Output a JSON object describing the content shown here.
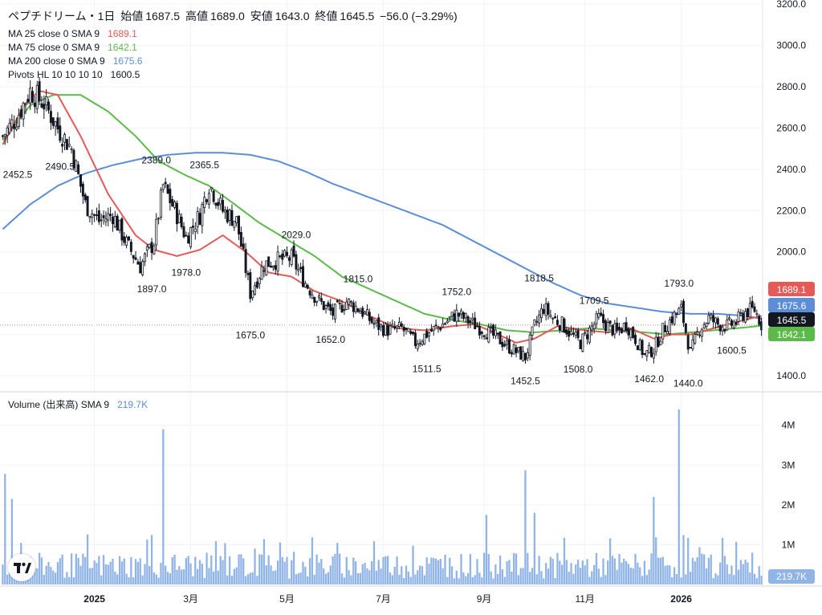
{
  "header": {
    "symbol": "ペプチドリーム・1日",
    "open_label": "始値",
    "open": "1687.5",
    "high_label": "高値",
    "high": "1689.0",
    "low_label": "安値",
    "low": "1643.0",
    "close_label": "終値",
    "close": "1645.5",
    "change": "−56.0 (−3.29%)"
  },
  "legend": {
    "ma25_label": "MA 25 close 0 SMA 9",
    "ma25_value": "1689.1",
    "ma75_label": "MA 75 close 0 SMA 9",
    "ma75_value": "1642.1",
    "ma200_label": "MA 200 close 0 SMA 9",
    "ma200_value": "1675.6",
    "pivots_label": "Pivots HL 10 10 10 10",
    "pivots_value": "1600.5",
    "volume_label": "Volume (出来高)",
    "volume_sma_label": "SMA 9",
    "volume_sma_value": "219.7K"
  },
  "colors": {
    "up": "#ffffff",
    "up_border": "#131722",
    "down": "#131722",
    "ma25": "#e55a57",
    "ma75": "#5cba4a",
    "ma200": "#5b8ed6",
    "volume": "#90b4e6",
    "grid": "#f0f3fa",
    "axis_text": "#131722"
  },
  "chart_data": [
    {
      "type": "candlestick",
      "title": "ペプチドリーム・1日",
      "y_axis_ticks": [
        1400,
        1600,
        1800,
        2000,
        2200,
        2400,
        2600,
        2800,
        3000,
        3200
      ],
      "ylim": [
        1330,
        3220
      ],
      "x_axis_labels": [
        "2025",
        "3月",
        "5月",
        "7月",
        "9月",
        "11月",
        "2026"
      ],
      "price_tags": [
        {
          "label": "1689.1",
          "value": 1689.1,
          "color": "#e55a57"
        },
        {
          "label": "1675.6",
          "value": 1675.6,
          "color": "#5b8ed6"
        },
        {
          "label": "1645.5",
          "value": 1645.5,
          "color": "#131722"
        },
        {
          "label": "1642.1",
          "value": 1642.1,
          "color": "#5cba4a"
        }
      ],
      "pivots": [
        {
          "label": "2452.5",
          "value": 2452.5,
          "bar": 0
        },
        {
          "label": "2490.5",
          "value": 2490.5,
          "bar": 25
        },
        {
          "label": "2389.0",
          "value": 2389.0,
          "bar": 67
        },
        {
          "label": "2365.5",
          "value": 2365.5,
          "bar": 88
        },
        {
          "label": "1978.0",
          "value": 1978.0,
          "bar": 80
        },
        {
          "label": "1897.0",
          "value": 1897.0,
          "bar": 65
        },
        {
          "label": "2029.0",
          "value": 2029.0,
          "bar": 128
        },
        {
          "label": "1675.0",
          "value": 1675.0,
          "bar": 108
        },
        {
          "label": "1815.0",
          "value": 1815.0,
          "bar": 155
        },
        {
          "label": "1652.0",
          "value": 1652.0,
          "bar": 143
        },
        {
          "label": "1752.0",
          "value": 1752.0,
          "bar": 198
        },
        {
          "label": "1511.5",
          "value": 1511.5,
          "bar": 185
        },
        {
          "label": "1818.5",
          "value": 1818.5,
          "bar": 234
        },
        {
          "label": "1452.5",
          "value": 1452.5,
          "bar": 228
        },
        {
          "label": "1709.5",
          "value": 1709.5,
          "bar": 258
        },
        {
          "label": "1508.0",
          "value": 1508.0,
          "bar": 251
        },
        {
          "label": "1793.0",
          "value": 1793.0,
          "bar": 295
        },
        {
          "label": "1462.0",
          "value": 1462.0,
          "bar": 282
        },
        {
          "label": "1440.0",
          "value": 1440.0,
          "bar": 299
        },
        {
          "label": "1600.5",
          "value": 1600.5,
          "bar": 318
        }
      ],
      "close_anchors": [
        [
          0,
          2560
        ],
        [
          6,
          2650
        ],
        [
          12,
          2780
        ],
        [
          18,
          2720
        ],
        [
          24,
          2600
        ],
        [
          30,
          2500
        ],
        [
          36,
          2230
        ],
        [
          42,
          2150
        ],
        [
          48,
          2180
        ],
        [
          54,
          2040
        ],
        [
          60,
          1930
        ],
        [
          66,
          2050
        ],
        [
          70,
          2320
        ],
        [
          76,
          2180
        ],
        [
          80,
          2070
        ],
        [
          86,
          2180
        ],
        [
          90,
          2330
        ],
        [
          96,
          2200
        ],
        [
          102,
          2150
        ],
        [
          108,
          1800
        ],
        [
          114,
          1940
        ],
        [
          120,
          1960
        ],
        [
          126,
          1970
        ],
        [
          132,
          1850
        ],
        [
          138,
          1760
        ],
        [
          144,
          1700
        ],
        [
          150,
          1760
        ],
        [
          156,
          1720
        ],
        [
          162,
          1650
        ],
        [
          168,
          1620
        ],
        [
          174,
          1630
        ],
        [
          180,
          1560
        ],
        [
          186,
          1610
        ],
        [
          192,
          1650
        ],
        [
          198,
          1700
        ],
        [
          204,
          1660
        ],
        [
          210,
          1620
        ],
        [
          216,
          1580
        ],
        [
          222,
          1530
        ],
        [
          228,
          1490
        ],
        [
          232,
          1640
        ],
        [
          236,
          1730
        ],
        [
          240,
          1680
        ],
        [
          244,
          1650
        ],
        [
          248,
          1600
        ],
        [
          252,
          1560
        ],
        [
          256,
          1620
        ],
        [
          260,
          1680
        ],
        [
          264,
          1640
        ],
        [
          268,
          1610
        ],
        [
          272,
          1650
        ],
        [
          276,
          1580
        ],
        [
          280,
          1500
        ],
        [
          284,
          1530
        ],
        [
          288,
          1620
        ],
        [
          292,
          1680
        ],
        [
          296,
          1720
        ],
        [
          300,
          1510
        ],
        [
          304,
          1630
        ],
        [
          308,
          1680
        ],
        [
          312,
          1650
        ],
        [
          316,
          1640
        ],
        [
          320,
          1660
        ],
        [
          324,
          1710
        ],
        [
          328,
          1720
        ],
        [
          331,
          1650
        ]
      ],
      "ma25_anchors": [
        [
          0,
          2520
        ],
        [
          10,
          2720
        ],
        [
          16,
          2780
        ],
        [
          24,
          2760
        ],
        [
          34,
          2560
        ],
        [
          46,
          2280
        ],
        [
          58,
          2080
        ],
        [
          66,
          2010
        ],
        [
          76,
          1980
        ],
        [
          86,
          2010
        ],
        [
          96,
          2080
        ],
        [
          106,
          2000
        ],
        [
          116,
          1900
        ],
        [
          126,
          1880
        ],
        [
          136,
          1810
        ],
        [
          148,
          1760
        ],
        [
          160,
          1690
        ],
        [
          172,
          1630
        ],
        [
          184,
          1620
        ],
        [
          196,
          1640
        ],
        [
          206,
          1650
        ],
        [
          216,
          1600
        ],
        [
          224,
          1560
        ],
        [
          232,
          1580
        ],
        [
          242,
          1640
        ],
        [
          254,
          1620
        ],
        [
          264,
          1610
        ],
        [
          274,
          1630
        ],
        [
          284,
          1580
        ],
        [
          292,
          1600
        ],
        [
          300,
          1600
        ],
        [
          310,
          1630
        ],
        [
          320,
          1660
        ],
        [
          331,
          1690
        ]
      ],
      "ma75_anchors": [
        [
          0,
          2540
        ],
        [
          12,
          2710
        ],
        [
          22,
          2760
        ],
        [
          34,
          2760
        ],
        [
          46,
          2680
        ],
        [
          58,
          2560
        ],
        [
          68,
          2440
        ],
        [
          80,
          2370
        ],
        [
          90,
          2320
        ],
        [
          100,
          2240
        ],
        [
          112,
          2140
        ],
        [
          124,
          2060
        ],
        [
          136,
          1980
        ],
        [
          148,
          1880
        ],
        [
          160,
          1820
        ],
        [
          172,
          1760
        ],
        [
          184,
          1700
        ],
        [
          196,
          1670
        ],
        [
          208,
          1650
        ],
        [
          220,
          1620
        ],
        [
          232,
          1610
        ],
        [
          244,
          1620
        ],
        [
          256,
          1630
        ],
        [
          268,
          1620
        ],
        [
          280,
          1610
        ],
        [
          290,
          1600
        ],
        [
          300,
          1610
        ],
        [
          310,
          1620
        ],
        [
          320,
          1630
        ],
        [
          331,
          1642
        ]
      ],
      "ma200_anchors": [
        [
          0,
          2110
        ],
        [
          12,
          2230
        ],
        [
          24,
          2320
        ],
        [
          36,
          2380
        ],
        [
          48,
          2420
        ],
        [
          60,
          2450
        ],
        [
          72,
          2470
        ],
        [
          84,
          2480
        ],
        [
          96,
          2480
        ],
        [
          108,
          2470
        ],
        [
          120,
          2440
        ],
        [
          132,
          2390
        ],
        [
          144,
          2330
        ],
        [
          156,
          2280
        ],
        [
          168,
          2230
        ],
        [
          180,
          2180
        ],
        [
          192,
          2130
        ],
        [
          204,
          2060
        ],
        [
          216,
          1990
        ],
        [
          228,
          1920
        ],
        [
          240,
          1850
        ],
        [
          252,
          1790
        ],
        [
          264,
          1750
        ],
        [
          276,
          1730
        ],
        [
          288,
          1710
        ],
        [
          300,
          1700
        ],
        [
          312,
          1700
        ],
        [
          324,
          1690
        ],
        [
          331,
          1676
        ]
      ]
    },
    {
      "type": "bar",
      "title": "Volume (出来高)",
      "y_axis_ticks": [
        "1M",
        "2M",
        "3M",
        "4M"
      ],
      "ylim": [
        0,
        4600000
      ],
      "current_value": "219.7K",
      "spikes": [
        {
          "bar": 1,
          "value": 2780000
        },
        {
          "bar": 4,
          "value": 2150000
        },
        {
          "bar": 70,
          "value": 3900000
        },
        {
          "bar": 228,
          "value": 2870000
        },
        {
          "bar": 232,
          "value": 1800000
        },
        {
          "bar": 295,
          "value": 4400000
        },
        {
          "bar": 284,
          "value": 2200000
        },
        {
          "bar": 211,
          "value": 1750000
        }
      ]
    }
  ]
}
